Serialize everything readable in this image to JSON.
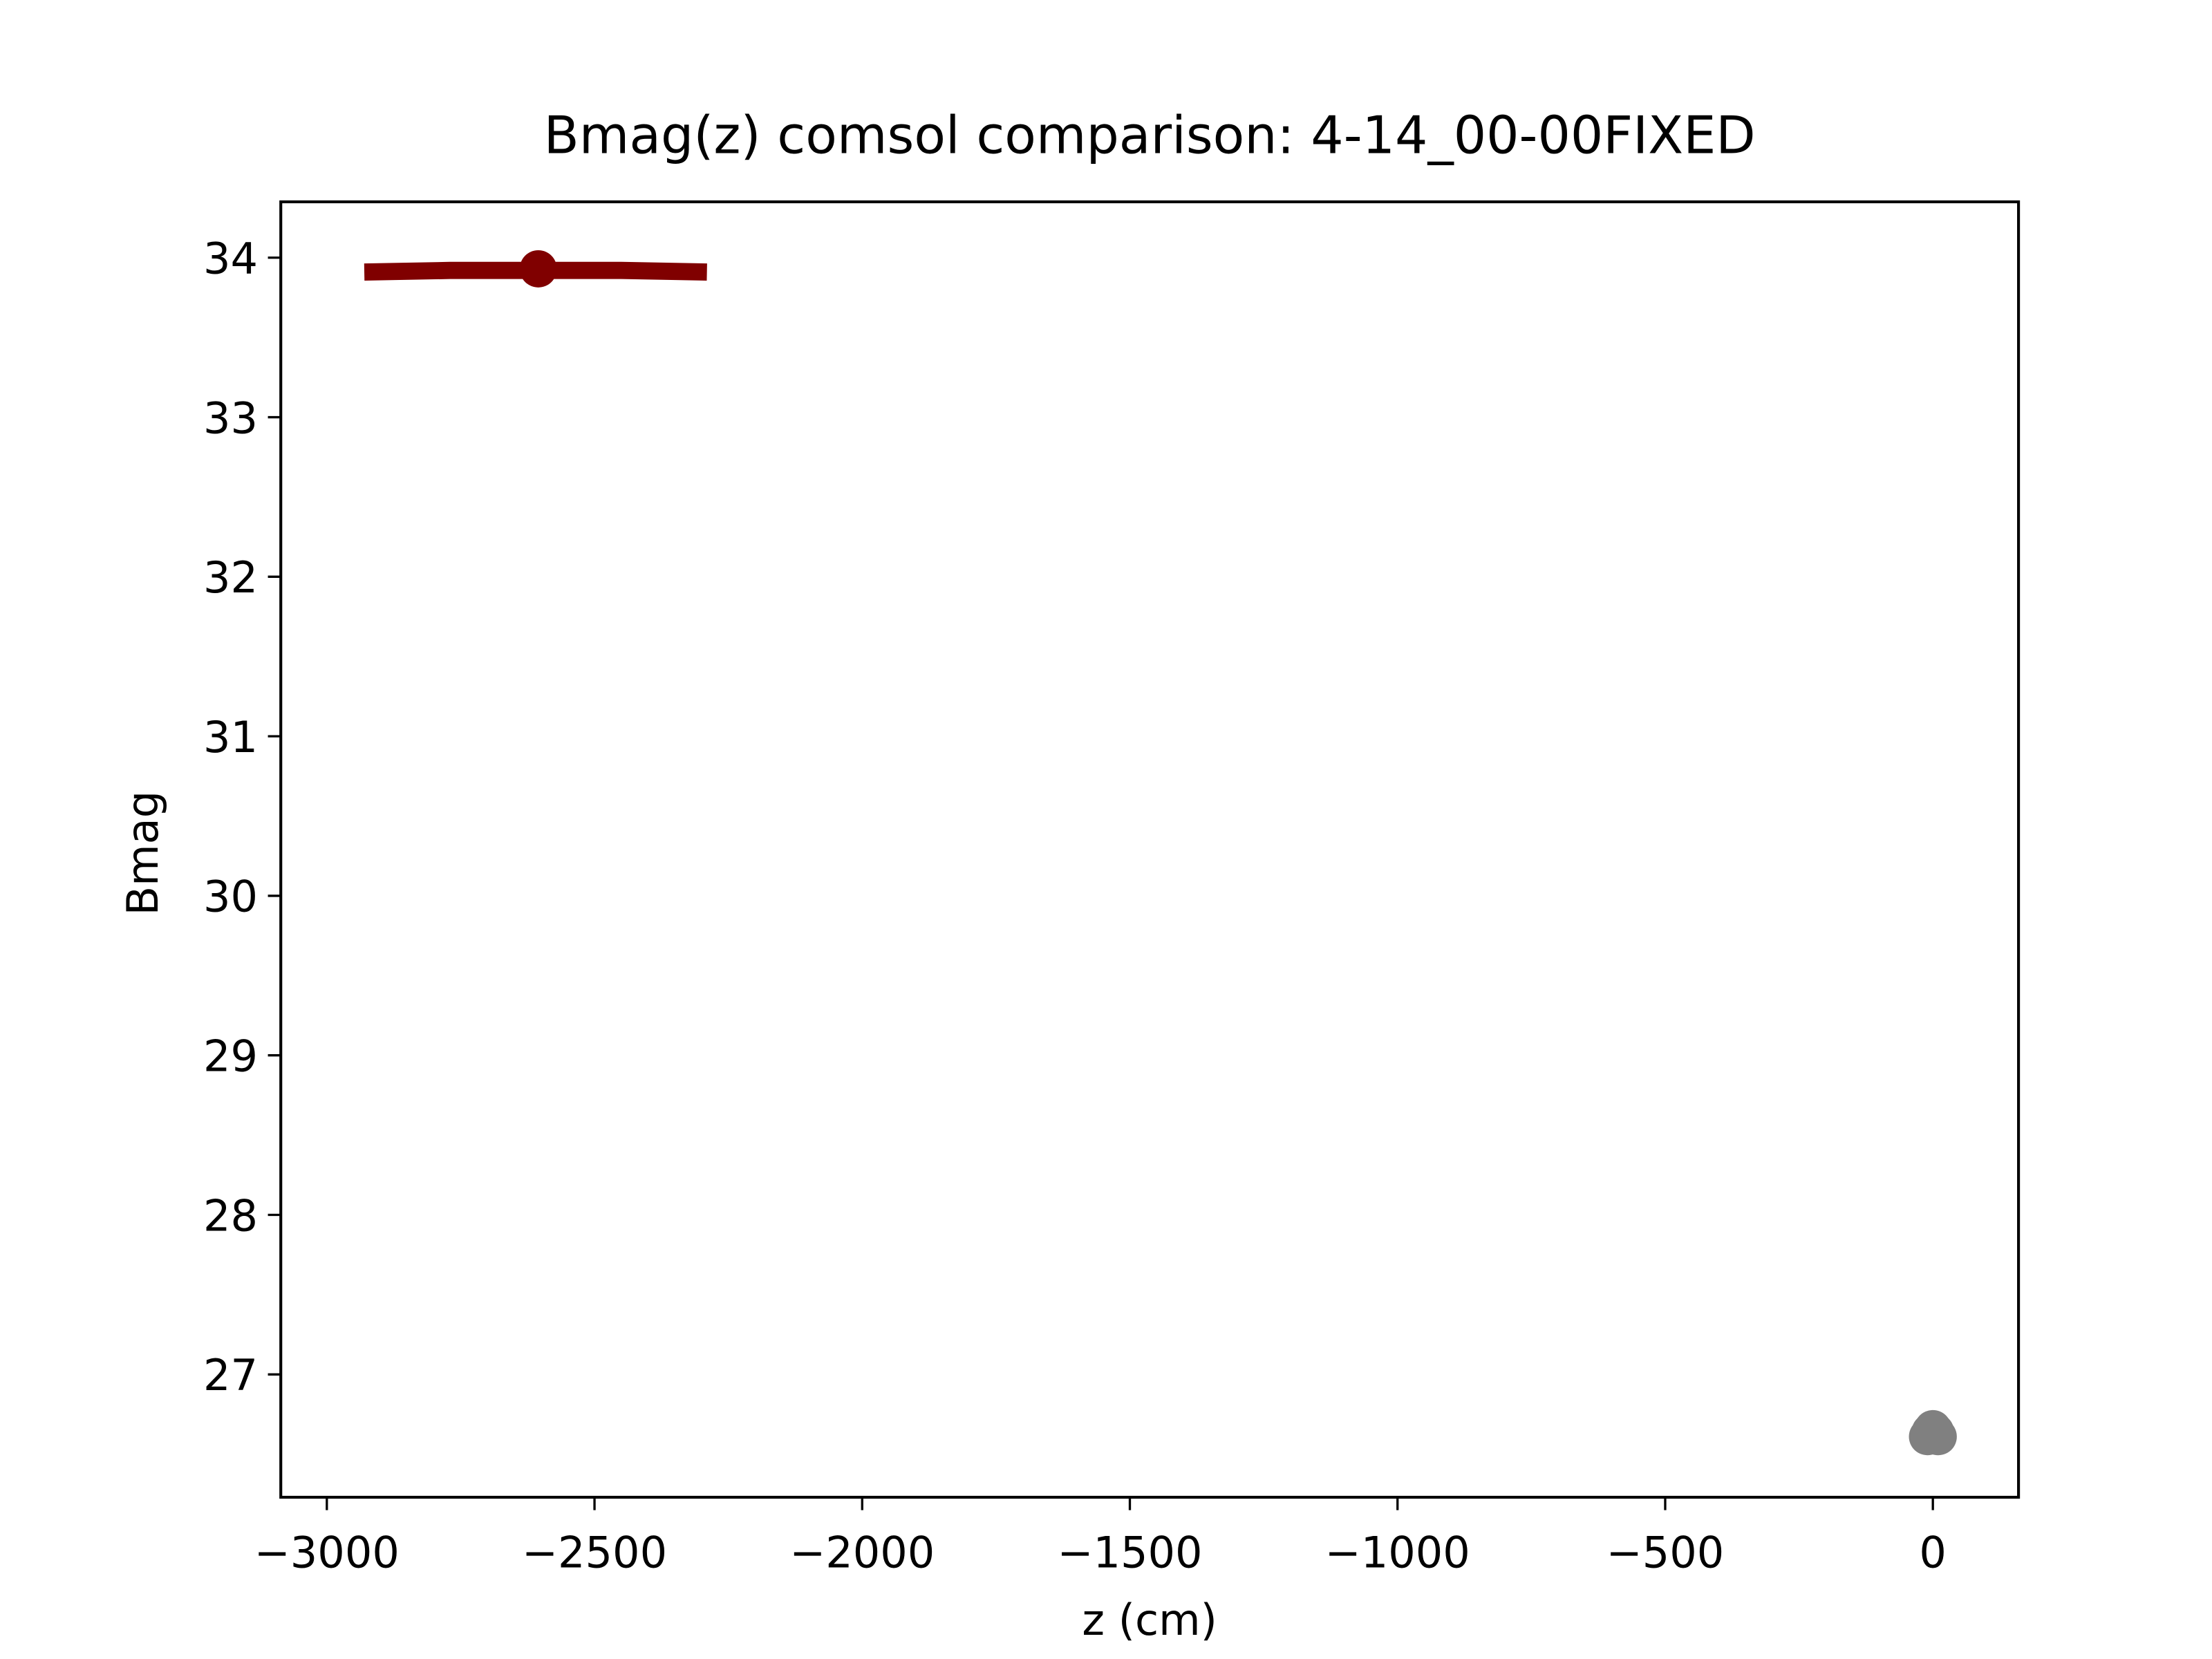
{
  "chart_data": {
    "type": "line",
    "title": "Bmag(z) comsol comparison: 4-14_00-00FIXED",
    "x_label": "z (cm)",
    "y_label": "Bmag",
    "xlim": [
      -3086,
      160
    ],
    "ylim": [
      26.23,
      34.35
    ],
    "xticks": [
      {
        "value": -3000,
        "label": "−3000"
      },
      {
        "value": -2500,
        "label": "−2500"
      },
      {
        "value": -2000,
        "label": "−2000"
      },
      {
        "value": -1500,
        "label": "−1500"
      },
      {
        "value": -1000,
        "label": "−1000"
      },
      {
        "value": -500,
        "label": "−500"
      },
      0
    ],
    "yticks": [
      27,
      28,
      29,
      30,
      31,
      32,
      33,
      34
    ],
    "grid": false,
    "series": [
      {
        "type": "line",
        "color": "#800000",
        "x": [
          -2930,
          -2770,
          -2610,
          -2450,
          -2290
        ],
        "values": [
          33.91,
          33.92,
          33.92,
          33.92,
          33.91
        ]
      },
      {
        "type": "scatter",
        "color": "#800000",
        "x": [
          -2605
        ],
        "values": [
          33.93
        ]
      },
      {
        "type": "scatter",
        "color": "#808080",
        "x": [
          -10,
          0,
          10,
          -5,
          5
        ],
        "values": [
          26.61,
          26.66,
          26.61,
          26.64,
          26.64
        ]
      }
    ]
  }
}
